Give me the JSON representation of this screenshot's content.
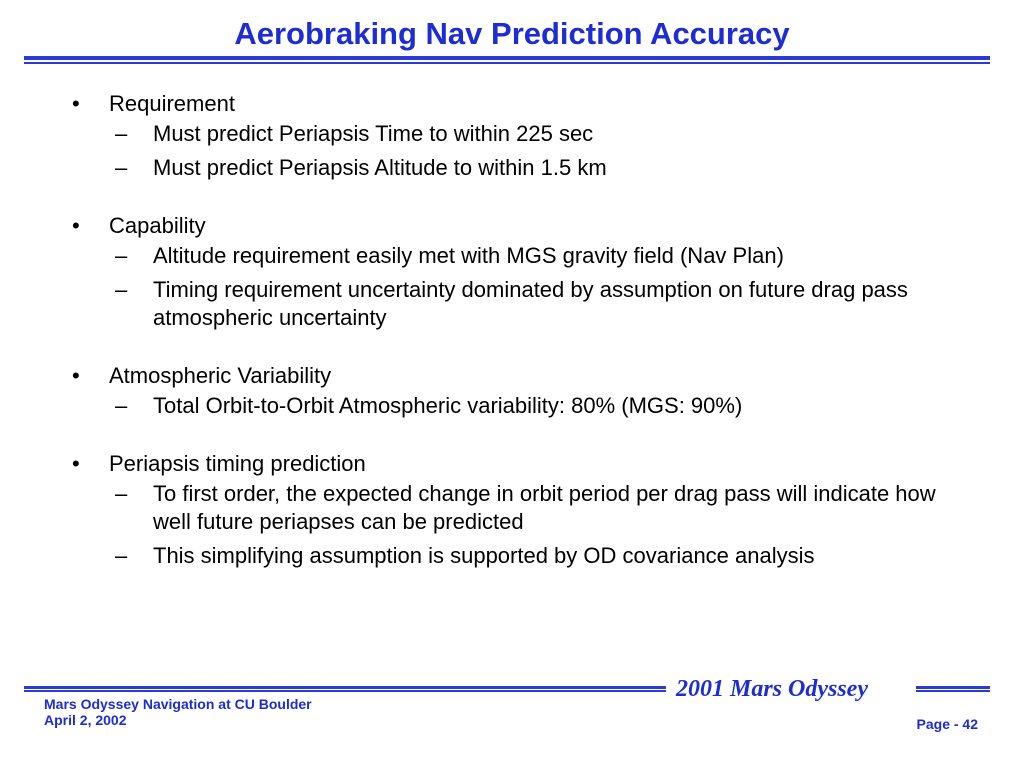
{
  "slide": {
    "title": "Aerobraking Nav Prediction Accuracy",
    "bullet_char": "•",
    "dash_char": "–",
    "sections": [
      {
        "heading": "Requirement",
        "items": [
          "Must predict Periapsis Time to within 225 sec",
          "Must predict Periapsis Altitude to within 1.5 km"
        ]
      },
      {
        "heading": "Capability",
        "items": [
          "Altitude requirement easily met with MGS gravity field (Nav Plan)",
          "Timing requirement uncertainty dominated by assumption on future drag pass atmospheric uncertainty"
        ]
      },
      {
        "heading": "Atmospheric Variability",
        "items": [
          "Total Orbit-to-Orbit Atmospheric variability: 80% (MGS: 90%)"
        ]
      },
      {
        "heading": "Periapsis timing prediction",
        "items": [
          "To first order, the expected change in orbit period per drag pass will indicate how well future periapses can be predicted",
          "This simplifying assumption is supported by OD covariance analysis"
        ]
      }
    ]
  },
  "footer": {
    "line1": "Mars Odyssey Navigation at CU Boulder",
    "line2": "April 2, 2002",
    "brand": "2001 Mars Odyssey",
    "page": "Page - 42"
  },
  "colors": {
    "accent": "#1d2cd4",
    "rule": "#2a3ad8",
    "text": "#000000",
    "background": "#ffffff"
  }
}
